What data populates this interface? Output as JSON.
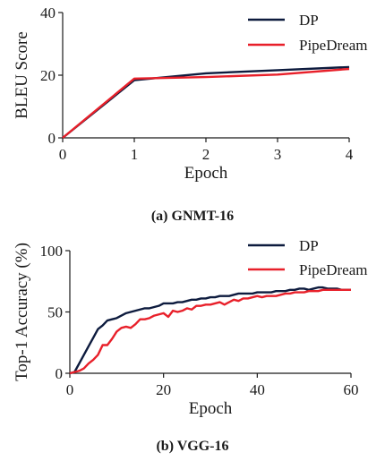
{
  "chart_data": [
    {
      "type": "line",
      "caption": "(a) GNMT-16",
      "xlabel": "Epoch",
      "ylabel": "BLEU Score",
      "xlim": [
        0,
        4
      ],
      "ylim": [
        0,
        40
      ],
      "xticks": [
        0,
        1,
        2,
        3,
        4
      ],
      "yticks": [
        0,
        20,
        40
      ],
      "grid": false,
      "legend_position": "top-right",
      "series": [
        {
          "name": "DP",
          "color": "#0d1b3e",
          "x": [
            0,
            1,
            2,
            3,
            4
          ],
          "y": [
            0,
            18.4,
            20.6,
            21.6,
            22.6
          ]
        },
        {
          "name": "PipeDream",
          "color": "#e8202a",
          "x": [
            0,
            1,
            2,
            3,
            4
          ],
          "y": [
            0,
            18.9,
            19.4,
            20.2,
            22.0
          ]
        }
      ]
    },
    {
      "type": "line",
      "caption": "(b) VGG-16",
      "xlabel": "Epoch",
      "ylabel": "Top-1 Accuracy (%)",
      "xlim": [
        0,
        60
      ],
      "ylim": [
        0,
        100
      ],
      "xticks": [
        0,
        20,
        40,
        60
      ],
      "yticks": [
        0,
        50,
        100
      ],
      "grid": false,
      "legend_position": "top-right",
      "series": [
        {
          "name": "DP",
          "color": "#0d1b3e",
          "x": [
            0,
            1,
            2,
            3,
            4,
            5,
            6,
            7,
            8,
            9,
            10,
            11,
            12,
            13,
            14,
            15,
            16,
            17,
            18,
            19,
            20,
            21,
            22,
            23,
            24,
            25,
            26,
            27,
            28,
            29,
            30,
            31,
            32,
            33,
            34,
            35,
            36,
            37,
            38,
            39,
            40,
            41,
            42,
            43,
            44,
            45,
            46,
            47,
            48,
            49,
            50,
            51,
            52,
            53,
            54,
            55,
            56,
            57,
            58,
            59,
            60
          ],
          "y": [
            0,
            1,
            8,
            15,
            22,
            29,
            36,
            39,
            43,
            44,
            45,
            47,
            49,
            50,
            51,
            52,
            53,
            53,
            54,
            55,
            57,
            57,
            57,
            58,
            58,
            59,
            60,
            60,
            61,
            61,
            62,
            62,
            63,
            63,
            63,
            64,
            65,
            65,
            65,
            65,
            66,
            66,
            66,
            66,
            67,
            67,
            67,
            68,
            68,
            69,
            69,
            68,
            69,
            70,
            70,
            69,
            69,
            69,
            68,
            68,
            68
          ]
        },
        {
          "name": "PipeDream",
          "color": "#e8202a",
          "x": [
            0,
            1,
            2,
            3,
            4,
            5,
            6,
            7,
            8,
            9,
            10,
            11,
            12,
            13,
            14,
            15,
            16,
            17,
            18,
            19,
            20,
            21,
            22,
            23,
            24,
            25,
            26,
            27,
            28,
            29,
            30,
            31,
            32,
            33,
            34,
            35,
            36,
            37,
            38,
            39,
            40,
            41,
            42,
            43,
            44,
            45,
            46,
            47,
            48,
            49,
            50,
            51,
            52,
            53,
            54,
            55,
            56,
            57,
            58,
            59,
            60
          ],
          "y": [
            0,
            1,
            2,
            4,
            8,
            11,
            15,
            23,
            23,
            28,
            34,
            37,
            38,
            37,
            40,
            44,
            44,
            45,
            47,
            48,
            49,
            46,
            51,
            50,
            51,
            53,
            52,
            55,
            55,
            56,
            56,
            57,
            58,
            56,
            58,
            60,
            59,
            61,
            61,
            62,
            63,
            62,
            63,
            63,
            63,
            64,
            65,
            65,
            66,
            66,
            66,
            67,
            67,
            67,
            68,
            68,
            68,
            68,
            68,
            68,
            68
          ]
        }
      ]
    }
  ]
}
